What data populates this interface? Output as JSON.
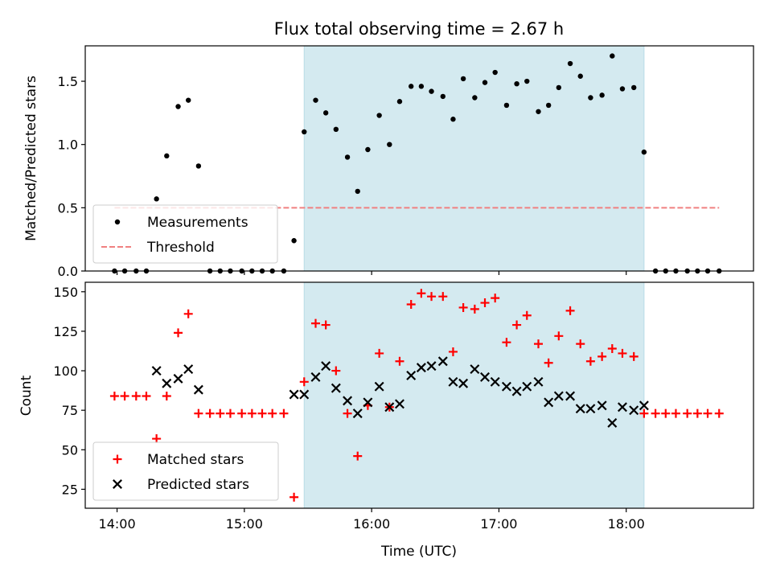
{
  "chart_data": [
    {
      "type": "scatter",
      "title": "Flux total observing time = 2.67 h",
      "xlabel": "",
      "ylabel": "Matched/Predicted stars",
      "xlim": [
        13.75,
        19.0
      ],
      "ylim": [
        0.0,
        1.78
      ],
      "yticks": [
        0.0,
        0.5,
        1.0,
        1.5
      ],
      "ytick_labels": [
        "0.0",
        "0.5",
        "1.0",
        "1.5"
      ],
      "xticks": [
        14,
        15,
        16,
        17,
        18
      ],
      "xtick_labels": [
        "",
        "",
        "",
        "",
        ""
      ],
      "shaded_span": {
        "x_start": 15.47,
        "x_end": 18.14,
        "color": "#d4eaf0"
      },
      "threshold": {
        "name": "Threshold",
        "value": 0.5,
        "x_start": 13.98,
        "x_end": 18.73,
        "color": "#f08080"
      },
      "series": [
        {
          "name": "Measurements",
          "marker": "dot",
          "color": "#000000",
          "x": [
            13.98,
            14.06,
            14.15,
            14.23,
            14.31,
            14.39,
            14.48,
            14.56,
            14.64,
            14.73,
            14.81,
            14.89,
            14.98,
            15.06,
            15.14,
            15.22,
            15.31,
            15.39,
            15.47,
            15.56,
            15.64,
            15.72,
            15.81,
            15.89,
            15.97,
            16.06,
            16.14,
            16.22,
            16.31,
            16.39,
            16.47,
            16.56,
            16.64,
            16.72,
            16.81,
            16.89,
            16.97,
            17.06,
            17.14,
            17.22,
            17.31,
            17.39,
            17.47,
            17.56,
            17.64,
            17.72,
            17.81,
            17.89,
            17.97,
            18.06,
            18.14,
            18.23,
            18.31,
            18.39,
            18.48,
            18.56,
            18.64,
            18.73
          ],
          "y": [
            0,
            0,
            0,
            0,
            0.57,
            0.91,
            1.3,
            1.35,
            0.83,
            0,
            0,
            0,
            0,
            0,
            0,
            0,
            0,
            0.24,
            1.1,
            1.35,
            1.25,
            1.12,
            0.9,
            0.63,
            0.96,
            1.23,
            1.0,
            1.34,
            1.46,
            1.46,
            1.42,
            1.38,
            1.2,
            1.52,
            1.37,
            1.49,
            1.57,
            1.31,
            1.48,
            1.5,
            1.26,
            1.31,
            1.45,
            1.64,
            1.54,
            1.37,
            1.39,
            1.7,
            1.44,
            1.45,
            0.94,
            0,
            0,
            0,
            0,
            0,
            0,
            0
          ]
        }
      ],
      "legend": {
        "location": "lower-left",
        "entries": [
          "Measurements",
          "Threshold"
        ]
      }
    },
    {
      "type": "scatter",
      "title": "",
      "xlabel": "Time (UTC)",
      "ylabel": "Count",
      "xlim": [
        13.75,
        19.0
      ],
      "ylim": [
        13,
        156
      ],
      "yticks": [
        25,
        50,
        75,
        100,
        125,
        150
      ],
      "ytick_labels": [
        "25",
        "50",
        "75",
        "100",
        "125",
        "150"
      ],
      "xticks": [
        14,
        15,
        16,
        17,
        18
      ],
      "xtick_labels": [
        "14:00",
        "15:00",
        "16:00",
        "17:00",
        "18:00"
      ],
      "shaded_span": {
        "x_start": 15.47,
        "x_end": 18.14,
        "color": "#d4eaf0"
      },
      "series": [
        {
          "name": "Matched stars",
          "marker": "plus",
          "color": "#ff0000",
          "x": [
            13.98,
            14.06,
            14.15,
            14.23,
            14.31,
            14.39,
            14.48,
            14.56,
            14.64,
            14.73,
            14.81,
            14.89,
            14.98,
            15.06,
            15.14,
            15.22,
            15.31,
            15.39,
            15.47,
            15.56,
            15.64,
            15.72,
            15.81,
            15.89,
            15.97,
            16.06,
            16.14,
            16.22,
            16.31,
            16.39,
            16.47,
            16.56,
            16.64,
            16.72,
            16.81,
            16.89,
            16.97,
            17.06,
            17.14,
            17.22,
            17.31,
            17.39,
            17.47,
            17.56,
            17.64,
            17.72,
            17.81,
            17.89,
            17.97,
            18.06,
            18.14,
            18.23,
            18.31,
            18.39,
            18.48,
            18.56,
            18.64,
            18.73
          ],
          "y": [
            84,
            84,
            84,
            84,
            57,
            84,
            124,
            136,
            73,
            73,
            73,
            73,
            73,
            73,
            73,
            73,
            73,
            20,
            93,
            130,
            129,
            100,
            73,
            46,
            78,
            111,
            77,
            106,
            142,
            149,
            147,
            147,
            112,
            140,
            139,
            143,
            146,
            118,
            129,
            135,
            117,
            105,
            122,
            138,
            117,
            106,
            109,
            114,
            111,
            109,
            73,
            73,
            73,
            73,
            73,
            73,
            73,
            73
          ]
        },
        {
          "name": "Predicted stars",
          "marker": "x",
          "color": "#000000",
          "x": [
            14.31,
            14.39,
            14.48,
            14.56,
            14.64,
            15.39,
            15.47,
            15.56,
            15.64,
            15.72,
            15.81,
            15.89,
            15.97,
            16.06,
            16.14,
            16.22,
            16.31,
            16.39,
            16.47,
            16.56,
            16.64,
            16.72,
            16.81,
            16.89,
            16.97,
            17.06,
            17.14,
            17.22,
            17.31,
            17.39,
            17.47,
            17.56,
            17.64,
            17.72,
            17.81,
            17.89,
            17.97,
            18.06,
            18.14
          ],
          "y": [
            100,
            92,
            95,
            101,
            88,
            85,
            85,
            96,
            103,
            89,
            81,
            73,
            80,
            90,
            77,
            79,
            97,
            102,
            103,
            106,
            93,
            92,
            101,
            96,
            93,
            90,
            87,
            90,
            93,
            80,
            84,
            84,
            76,
            76,
            78,
            67,
            77,
            75,
            78
          ]
        }
      ],
      "legend": {
        "location": "lower-left",
        "entries": [
          "Matched stars",
          "Predicted stars"
        ]
      }
    }
  ]
}
